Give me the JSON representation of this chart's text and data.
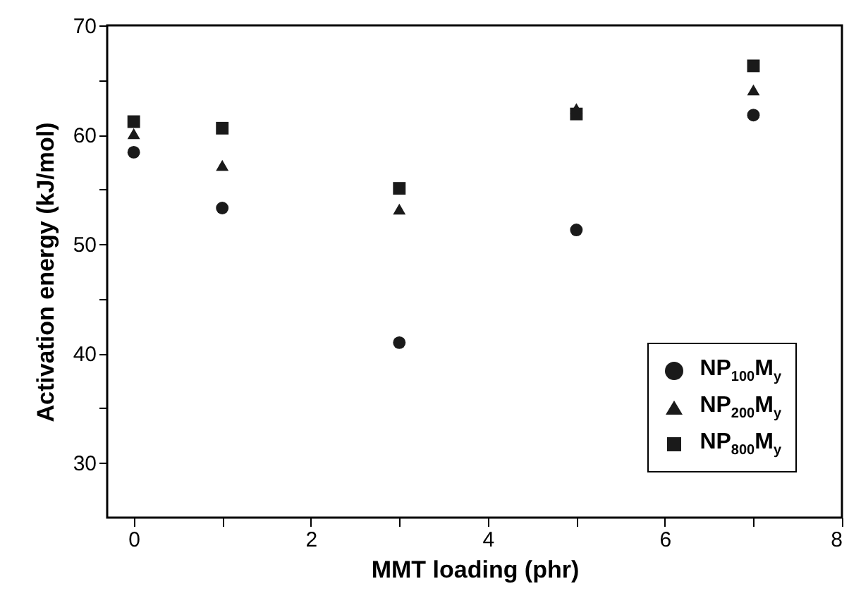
{
  "chart_data": {
    "type": "scatter",
    "xlabel": "MMT loading (phr)",
    "ylabel": "Activation energy (kJ/mol)",
    "x": [
      0,
      1,
      3,
      5,
      7
    ],
    "series": [
      {
        "name": "NP$_{100}$M$_{y}$",
        "color": "#1a1a1a",
        "marker": "circle",
        "values": [
          58.4,
          53.3,
          41.0,
          51.3,
          61.8
        ]
      },
      {
        "name": "NP$_{200}$M$_{y}$",
        "color": "#1a1a1a",
        "marker": "triangle",
        "values": [
          60.1,
          57.2,
          53.2,
          62.4,
          64.1
        ]
      },
      {
        "name": "NP$_{800}$M$_{y}$",
        "color": "#1a1a1a",
        "marker": "square",
        "values": [
          61.2,
          60.6,
          55.1,
          61.9,
          66.3
        ]
      }
    ],
    "xlim": [
      -0.3,
      8
    ],
    "xticks": [
      0,
      {
        "value": 1,
        "label": null
      },
      2,
      {
        "value": 3,
        "label": null
      },
      4,
      {
        "value": 5,
        "label": null
      },
      6,
      {
        "value": 7,
        "label": null
      },
      8
    ],
    "ylim": [
      25,
      70
    ],
    "yticks": [
      30,
      {
        "value": 35,
        "label": null
      },
      40,
      {
        "value": 45,
        "label": null
      },
      50,
      {
        "value": 55,
        "label": null
      },
      60,
      {
        "value": 65,
        "label": null
      },
      70
    ],
    "grid": false,
    "legend": "bottom right"
  }
}
